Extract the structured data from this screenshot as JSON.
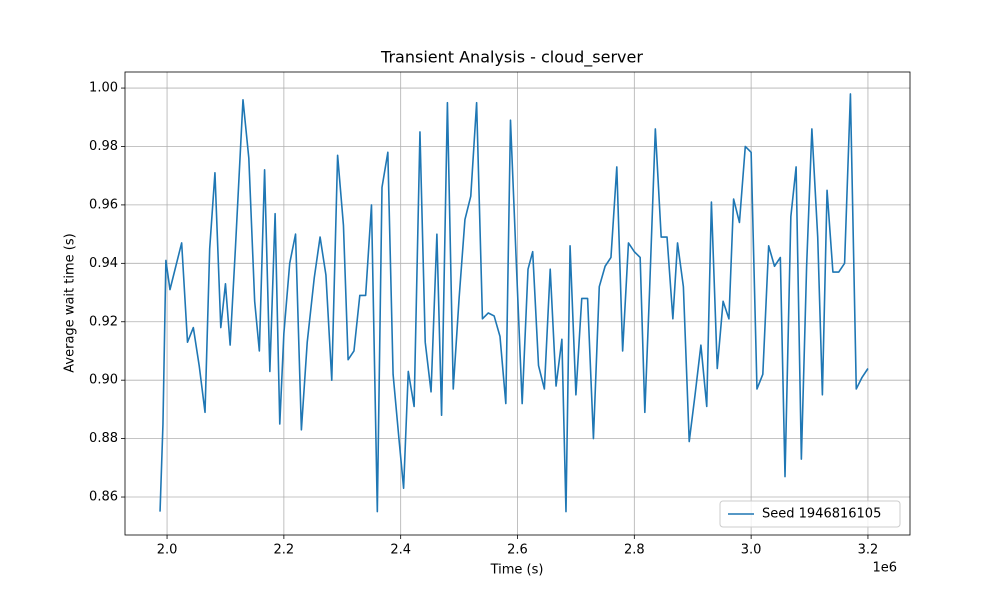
{
  "chart_data": {
    "type": "line",
    "title": "Transient Analysis - cloud_server",
    "x_label": "Time (s)",
    "y_label": "Average wait time (s)",
    "x_offset_label": "1e6",
    "x": [
      1988000,
      1993000,
      1998000,
      2005000,
      2015000,
      2025000,
      2035000,
      2045000,
      2055000,
      2065000,
      2073000,
      2082000,
      2092000,
      2100000,
      2108000,
      2117000,
      2130000,
      2140000,
      2150000,
      2158000,
      2167000,
      2176000,
      2185000,
      2193000,
      2200000,
      2210000,
      2220000,
      2230000,
      2240000,
      2252000,
      2262000,
      2272000,
      2282000,
      2292000,
      2302000,
      2310000,
      2320000,
      2330000,
      2340000,
      2350000,
      2360000,
      2368000,
      2378000,
      2387000,
      2397000,
      2405000,
      2413000,
      2423000,
      2433000,
      2442000,
      2452000,
      2462000,
      2470000,
      2480000,
      2490000,
      2500000,
      2510000,
      2520000,
      2530000,
      2540000,
      2550000,
      2560000,
      2570000,
      2580000,
      2588000,
      2598000,
      2608000,
      2618000,
      2626000,
      2636000,
      2646000,
      2656000,
      2666000,
      2676000,
      2683000,
      2690000,
      2700000,
      2710000,
      2720000,
      2730000,
      2740000,
      2750000,
      2760000,
      2770000,
      2780000,
      2790000,
      2800000,
      2810000,
      2818000,
      2826000,
      2836000,
      2846000,
      2856000,
      2866000,
      2874000,
      2884000,
      2894000,
      2904000,
      2914000,
      2924000,
      2932000,
      2942000,
      2952000,
      2962000,
      2970000,
      2980000,
      2990000,
      3000000,
      3010000,
      3020000,
      3030000,
      3040000,
      3050000,
      3058000,
      3068000,
      3077000,
      3086000,
      3095000,
      3104000,
      3114000,
      3122000,
      3130000,
      3140000,
      3150000,
      3160000,
      3170000,
      3180000,
      3190000,
      3200000
    ],
    "series": [
      {
        "name": "Seed 1946816105",
        "color": "#1f77b4",
        "values": [
          0.855,
          0.885,
          0.941,
          0.931,
          0.939,
          0.947,
          0.913,
          0.918,
          0.905,
          0.889,
          0.945,
          0.971,
          0.918,
          0.933,
          0.912,
          0.945,
          0.996,
          0.976,
          0.927,
          0.91,
          0.972,
          0.903,
          0.957,
          0.885,
          0.916,
          0.94,
          0.95,
          0.883,
          0.913,
          0.935,
          0.949,
          0.936,
          0.9,
          0.977,
          0.953,
          0.907,
          0.91,
          0.929,
          0.929,
          0.96,
          0.855,
          0.966,
          0.978,
          0.902,
          0.88,
          0.863,
          0.903,
          0.891,
          0.985,
          0.913,
          0.896,
          0.95,
          0.888,
          0.995,
          0.897,
          0.928,
          0.955,
          0.963,
          0.995,
          0.921,
          0.923,
          0.922,
          0.915,
          0.892,
          0.989,
          0.94,
          0.892,
          0.938,
          0.944,
          0.905,
          0.897,
          0.938,
          0.898,
          0.914,
          0.855,
          0.946,
          0.895,
          0.928,
          0.928,
          0.88,
          0.932,
          0.939,
          0.942,
          0.973,
          0.91,
          0.947,
          0.944,
          0.942,
          0.889,
          0.93,
          0.986,
          0.949,
          0.949,
          0.921,
          0.947,
          0.932,
          0.879,
          0.895,
          0.912,
          0.891,
          0.961,
          0.904,
          0.927,
          0.921,
          0.962,
          0.954,
          0.98,
          0.978,
          0.897,
          0.902,
          0.946,
          0.939,
          0.942,
          0.867,
          0.956,
          0.973,
          0.873,
          0.939,
          0.986,
          0.949,
          0.895,
          0.965,
          0.937,
          0.937,
          0.94,
          0.998,
          0.897,
          0.901,
          0.904
        ]
      }
    ],
    "xlim": [
      1928000,
      3272000
    ],
    "ylim": [
      0.847,
      1.0055
    ],
    "xticks": [
      {
        "value": 2000000,
        "label": "2.0"
      },
      {
        "value": 2200000,
        "label": "2.2"
      },
      {
        "value": 2400000,
        "label": "2.4"
      },
      {
        "value": 2600000,
        "label": "2.6"
      },
      {
        "value": 2800000,
        "label": "2.8"
      },
      {
        "value": 3000000,
        "label": "3.0"
      },
      {
        "value": 3200000,
        "label": "3.2"
      }
    ],
    "yticks": [
      0.86,
      0.88,
      {
        "value": 0.9,
        "label": "0.90"
      },
      0.92,
      0.94,
      0.96,
      0.98,
      {
        "value": 1,
        "label": "1.00"
      }
    ],
    "grid": true,
    "legend": "lower-right"
  }
}
